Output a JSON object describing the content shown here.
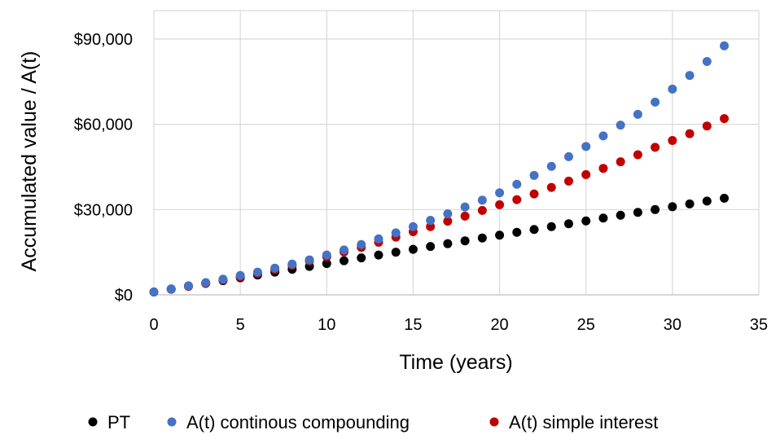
{
  "chart_data": {
    "type": "scatter",
    "xlabel": "Time (years)",
    "ylabel": "Accumulated value / A(t)",
    "xlim": [
      0,
      35
    ],
    "ylim": [
      0,
      100000
    ],
    "x_ticks": [
      0,
      5,
      10,
      15,
      20,
      25,
      30,
      35
    ],
    "y_ticks": [
      0,
      30000,
      60000,
      90000
    ],
    "x_tick_labels": [
      "0",
      "5",
      "10",
      "15",
      "20",
      "25",
      "30",
      "35"
    ],
    "y_tick_labels": [
      "$0",
      "$30,000",
      "$60,000",
      "$90,000"
    ],
    "grid": true,
    "legend_position": "bottom",
    "x": [
      0,
      1,
      2,
      3,
      4,
      5,
      6,
      7,
      8,
      9,
      10,
      11,
      12,
      13,
      14,
      15,
      16,
      17,
      18,
      19,
      20,
      21,
      22,
      23,
      24,
      25,
      26,
      27,
      28,
      29,
      30,
      31,
      32,
      33
    ],
    "series": [
      {
        "name": "PT",
        "color": "#000000",
        "values": [
          1000,
          2000,
          3000,
          4000,
          5000,
          6000,
          7000,
          8000,
          9000,
          10000,
          11000,
          12000,
          13000,
          14000,
          15000,
          16000,
          17000,
          18000,
          19000,
          20000,
          21000,
          22000,
          23000,
          24000,
          25000,
          26000,
          27000,
          28000,
          29000,
          30000,
          31000,
          32000,
          33000,
          34000
        ]
      },
      {
        "name": "A(t) continous compounding",
        "color": "#4472c4",
        "values": [
          1000,
          2100,
          3200,
          4300,
          5500,
          6800,
          8000,
          9400,
          10800,
          12300,
          14000,
          15800,
          17700,
          19700,
          21800,
          24000,
          26200,
          28500,
          30900,
          33300,
          35900,
          38900,
          42000,
          45200,
          48600,
          52200,
          55900,
          59700,
          63500,
          67800,
          72400,
          77200,
          82100,
          87600
        ]
      },
      {
        "name": "A(t) simple interest",
        "color": "#c00000",
        "values": [
          1000,
          2000,
          3000,
          4100,
          5200,
          6300,
          7600,
          8900,
          10400,
          11900,
          13400,
          15100,
          16700,
          18500,
          20300,
          22200,
          24000,
          25900,
          27700,
          29700,
          31700,
          33500,
          35500,
          37800,
          40000,
          42300,
          44500,
          46800,
          49300,
          51900,
          54300,
          56700,
          59400,
          62000
        ]
      }
    ]
  }
}
